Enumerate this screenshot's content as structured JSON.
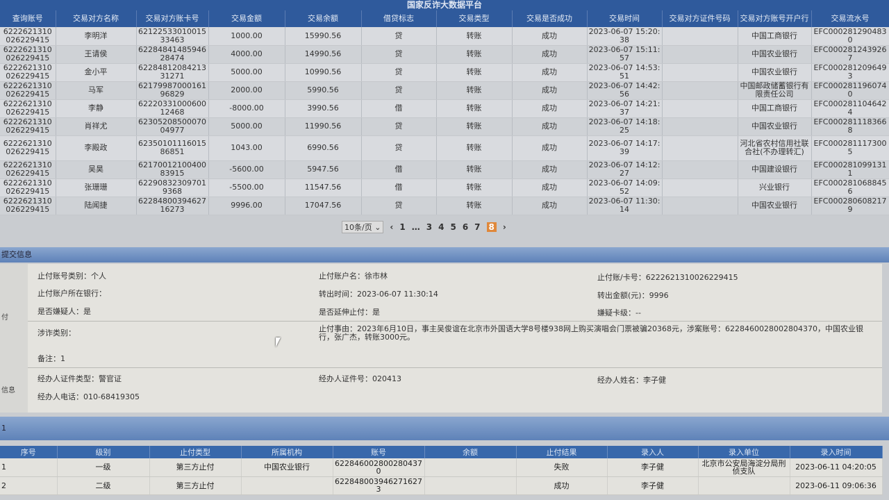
{
  "app_title": "国家反诈大数据平台",
  "transactions": {
    "headers": [
      "查询账号",
      "交易对方名称",
      "交易对方账卡号",
      "交易金额",
      "交易余额",
      "借贷标志",
      "交易类型",
      "交易是否成功",
      "交易时间",
      "交易对方证件号码",
      "交易对方账号开户行",
      "交易流水号"
    ],
    "rows": [
      [
        "6222621310026229415",
        "李明洋",
        "6212253301001533463",
        "1000.00",
        "15990.56",
        "贷",
        "转账",
        "成功",
        "2023-06-07 15:20:38",
        "",
        "中国工商银行",
        "EFC0002812904830"
      ],
      [
        "6222621310026229415",
        "王请侯",
        "6228484148594628474",
        "4000.00",
        "14990.56",
        "贷",
        "转账",
        "成功",
        "2023-06-07 15:11:57",
        "",
        "中国农业银行",
        "EFC0002812439267"
      ],
      [
        "6222621310026229415",
        "金小平",
        "6228481208421331271",
        "5000.00",
        "10990.56",
        "贷",
        "转账",
        "成功",
        "2023-06-07 14:53:51",
        "",
        "中国农业银行",
        "EFC0002812096493"
      ],
      [
        "6222621310026229415",
        "马军",
        "6217998700016196829",
        "2000.00",
        "5990.56",
        "贷",
        "转账",
        "成功",
        "2023-06-07 14:42:56",
        "",
        "中国邮政储蓄银行有限责任公司",
        "EFC0002811960740"
      ],
      [
        "6222621310026229415",
        "李静",
        "6222033100060012468",
        "-8000.00",
        "3990.56",
        "借",
        "转账",
        "成功",
        "2023-06-07 14:21:37",
        "",
        "中国工商银行",
        "EFC0002811046424"
      ],
      [
        "6222621310026229415",
        "肖祥尤",
        "6230520850007004977",
        "5000.00",
        "11990.56",
        "贷",
        "转账",
        "成功",
        "2023-06-07 14:18:25",
        "",
        "中国农业银行",
        "EFC0002811183668"
      ],
      [
        "6222621310026229415",
        "李殿政",
        "6235010111601586851",
        "1043.00",
        "6990.56",
        "贷",
        "转账",
        "成功",
        "2023-06-07 14:17:39",
        "",
        "河北省农村信用社联合社(不办理转汇)",
        "EFC0002811173005"
      ],
      [
        "6222621310026229415",
        "吴昊",
        "6217001210040083915",
        "-5600.00",
        "5947.56",
        "借",
        "转账",
        "成功",
        "2023-06-07 14:12:27",
        "",
        "中国建设银行",
        "EFC0002810991311"
      ],
      [
        "6222621310026229415",
        "张珊珊",
        "622908323097019368",
        "-5500.00",
        "11547.56",
        "借",
        "转账",
        "成功",
        "2023-06-07 14:09:52",
        "",
        "兴业银行",
        "EFC0002810688456"
      ],
      [
        "6222621310026229415",
        "陆闻捷",
        "6228480039462716273",
        "9996.00",
        "17047.56",
        "贷",
        "转账",
        "成功",
        "2023-06-07 11:30:14",
        "",
        "中国农业银行",
        "EFC0002806082179"
      ]
    ]
  },
  "pagination": {
    "page_size": "10条/页",
    "pages": [
      "1",
      "…",
      "3",
      "4",
      "5",
      "6",
      "7",
      "8"
    ],
    "current": "8"
  },
  "submit_section": {
    "title": "提交信息",
    "side_label_1": "付",
    "side_label_2": "信息",
    "fields": {
      "acct_type": "止付账号类别：个人",
      "acct_name": "止付账户名：徐市林",
      "acct_no": "止付账/卡号：6222621310026229415",
      "acct_bank": "止付账户所在银行：",
      "out_time": "转出时间：2023-06-07 11:30:14",
      "out_amount": "转出金额(元)：9996",
      "suspect": "是否嫌疑人：是",
      "extend": "是否延伸止付：是",
      "card_level": "嫌疑卡级：--",
      "fraud_type": "涉诈类别：",
      "reason": "止付事由：2023年6月10日，事主吴俊谊在北京市外国语大学8号楼938网上购买演唱会门票被骗20368元，涉案账号：6228460028002804370，中国农业银行，张广杰，转账3000元。",
      "remark": "备注：1",
      "officer_id_type": "经办人证件类型：警官证",
      "officer_id": "经办人证件号：020413",
      "officer_name": "经办人姓名：李子健",
      "officer_phone": "经办人电话：010-68419305"
    }
  },
  "stop_pay": {
    "section_label": "1",
    "headers": [
      "序号",
      "级别",
      "止付类型",
      "所属机构",
      "账号",
      "余额",
      "止付结果",
      "录入人",
      "录入单位",
      "录入时间"
    ],
    "rows": [
      [
        "1",
        "一级",
        "第三方止付",
        "中国农业银行",
        "6228460028002804370",
        "",
        "失败",
        "李子健",
        "北京市公安局海淀分局刑侦支队",
        "2023-06-11 04:20:05"
      ],
      [
        "2",
        "二级",
        "第三方止付",
        "",
        "6228480039462716273",
        "",
        "成功",
        "李子健",
        "",
        "2023-06-11 09:06:36"
      ]
    ]
  }
}
